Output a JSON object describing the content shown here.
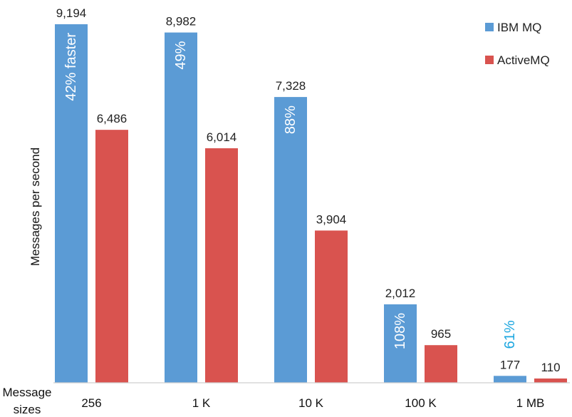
{
  "chart_data": {
    "type": "bar",
    "title": "",
    "ylabel": "Messages per second",
    "xlabel_lines": [
      "Message",
      "sizes"
    ],
    "categories": [
      "256",
      "1 K",
      "10 K",
      "100 K",
      "1 MB"
    ],
    "ylim": [
      0,
      9600
    ],
    "grid": false,
    "legend_position": "top-right",
    "series": [
      {
        "name": "IBM MQ",
        "color": "#5b9bd5",
        "values": [
          9194,
          8982,
          7328,
          2012,
          177
        ],
        "labels": [
          "9,194",
          "8,982",
          "7,328",
          "2,012",
          "177"
        ]
      },
      {
        "name": "ActiveMQ",
        "color": "#d9534f",
        "values": [
          6486,
          6014,
          3904,
          965,
          110
        ],
        "labels": [
          "6,486",
          "6,014",
          "3,904",
          "965",
          "110"
        ]
      }
    ],
    "annotations": [
      {
        "category": "256",
        "text": "42% faster",
        "color": "#ffffff",
        "placement": "inside"
      },
      {
        "category": "1 K",
        "text": "49%",
        "color": "#ffffff",
        "placement": "inside"
      },
      {
        "category": "10 K",
        "text": "88%",
        "color": "#ffffff",
        "placement": "inside"
      },
      {
        "category": "100 K",
        "text": "108%",
        "color": "#ffffff",
        "placement": "inside"
      },
      {
        "category": "1 MB",
        "text": "61%",
        "color": "#1ea7e0",
        "placement": "above"
      }
    ]
  }
}
